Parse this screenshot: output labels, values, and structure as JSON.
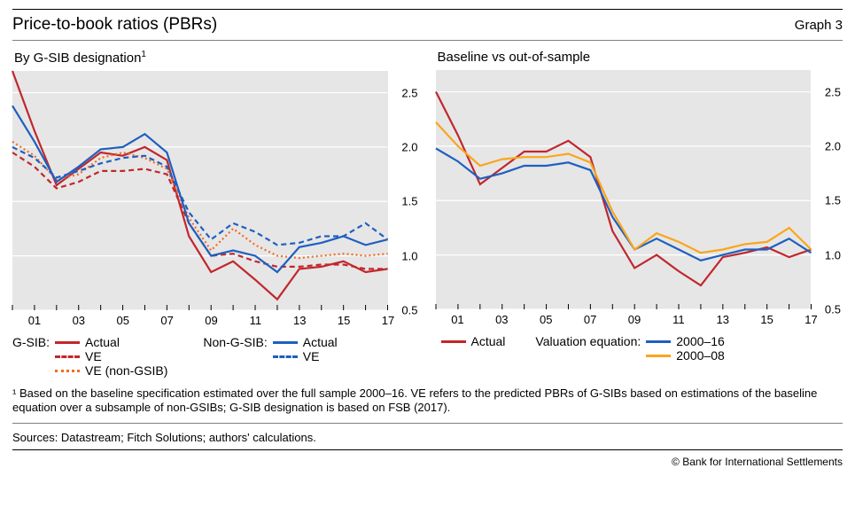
{
  "title": "Price-to-book ratios (PBRs)",
  "graph_label": "Graph 3",
  "footnote": "¹  Based on the baseline specification estimated over the full sample 2000–16. VE refers to the predicted PBRs of G-SIBs based on estimations of the baseline equation over a subsample of non-GSIBs; G-SIB designation is based on FSB (2017).",
  "sources": "Sources: Datastream; Fitch Solutions; authors' calculations.",
  "copyright": "© Bank for International Settlements",
  "panels": {
    "left": {
      "title_html": "By G-SIB designation¹",
      "legend_groups": [
        {
          "label": "G-SIB:",
          "items": [
            {
              "label": "Actual",
              "color": "#c1272d",
              "style": "solid"
            },
            {
              "label": "VE",
              "color": "#c1272d",
              "style": "dashed"
            },
            {
              "label": "VE (non-GSIB)",
              "color": "#f26c21",
              "style": "dotted"
            }
          ]
        },
        {
          "label": "Non-G-SIB:",
          "items": [
            {
              "label": "Actual",
              "color": "#1f5fbf",
              "style": "solid"
            },
            {
              "label": "VE",
              "color": "#1f5fbf",
              "style": "dashed"
            }
          ]
        }
      ]
    },
    "right": {
      "title": "Baseline vs out-of-sample",
      "legend_groups": [
        {
          "label": "",
          "items": [
            {
              "label": "Actual",
              "color": "#c1272d",
              "style": "solid"
            }
          ]
        },
        {
          "label": "Valuation equation:",
          "items": [
            {
              "label": "2000–16",
              "color": "#1f5fbf",
              "style": "solid"
            },
            {
              "label": "2000–08",
              "color": "#f9a61a",
              "style": "solid"
            }
          ]
        }
      ]
    }
  },
  "axes": {
    "ylim": [
      0.5,
      2.7
    ],
    "yticks": [
      0.5,
      1.0,
      1.5,
      2.0,
      2.5
    ],
    "xlim": [
      2000,
      2017
    ],
    "xticks_labeled": [
      2001,
      2003,
      2005,
      2007,
      2009,
      2011,
      2013,
      2015,
      2017
    ],
    "xtick_labels": [
      "01",
      "03",
      "05",
      "07",
      "09",
      "11",
      "13",
      "15",
      "17"
    ],
    "xticks_all": [
      2000,
      2001,
      2002,
      2003,
      2004,
      2005,
      2006,
      2007,
      2008,
      2009,
      2010,
      2011,
      2012,
      2013,
      2014,
      2015,
      2016,
      2017
    ],
    "background": "#e6e6e6",
    "grid_color": "#ffffff",
    "axis_fontsize": 13
  },
  "series": {
    "left": [
      {
        "name": "gsib-actual",
        "color": "#c1272d",
        "style": "solid",
        "data": [
          [
            2000,
            2.7
          ],
          [
            2001,
            2.15
          ],
          [
            2002,
            1.65
          ],
          [
            2003,
            1.8
          ],
          [
            2004,
            1.95
          ],
          [
            2005,
            1.92
          ],
          [
            2006,
            2.0
          ],
          [
            2007,
            1.88
          ],
          [
            2008,
            1.18
          ],
          [
            2009,
            0.85
          ],
          [
            2010,
            0.95
          ],
          [
            2011,
            0.78
          ],
          [
            2012,
            0.6
          ],
          [
            2013,
            0.88
          ],
          [
            2014,
            0.9
          ],
          [
            2015,
            0.95
          ],
          [
            2016,
            0.85
          ],
          [
            2017,
            0.88
          ]
        ]
      },
      {
        "name": "gsib-ve",
        "color": "#c1272d",
        "style": "dashed",
        "data": [
          [
            2000,
            1.95
          ],
          [
            2001,
            1.82
          ],
          [
            2002,
            1.62
          ],
          [
            2003,
            1.68
          ],
          [
            2004,
            1.78
          ],
          [
            2005,
            1.78
          ],
          [
            2006,
            1.8
          ],
          [
            2007,
            1.75
          ],
          [
            2008,
            1.3
          ],
          [
            2009,
            1.0
          ],
          [
            2010,
            1.02
          ],
          [
            2011,
            0.95
          ],
          [
            2012,
            0.9
          ],
          [
            2013,
            0.9
          ],
          [
            2014,
            0.92
          ],
          [
            2015,
            0.92
          ],
          [
            2016,
            0.88
          ],
          [
            2017,
            0.88
          ]
        ]
      },
      {
        "name": "gsib-ve-nongsib",
        "color": "#f26c21",
        "style": "dotted",
        "data": [
          [
            2000,
            2.05
          ],
          [
            2001,
            1.92
          ],
          [
            2002,
            1.7
          ],
          [
            2003,
            1.75
          ],
          [
            2004,
            1.9
          ],
          [
            2005,
            1.95
          ],
          [
            2006,
            1.9
          ],
          [
            2007,
            1.8
          ],
          [
            2008,
            1.35
          ],
          [
            2009,
            1.05
          ],
          [
            2010,
            1.25
          ],
          [
            2011,
            1.1
          ],
          [
            2012,
            1.0
          ],
          [
            2013,
            0.98
          ],
          [
            2014,
            1.0
          ],
          [
            2015,
            1.02
          ],
          [
            2016,
            1.0
          ],
          [
            2017,
            1.02
          ]
        ]
      },
      {
        "name": "nongsib-actual",
        "color": "#1f5fbf",
        "style": "solid",
        "data": [
          [
            2000,
            2.38
          ],
          [
            2001,
            2.05
          ],
          [
            2002,
            1.68
          ],
          [
            2003,
            1.82
          ],
          [
            2004,
            1.98
          ],
          [
            2005,
            2.0
          ],
          [
            2006,
            2.12
          ],
          [
            2007,
            1.95
          ],
          [
            2008,
            1.3
          ],
          [
            2009,
            1.0
          ],
          [
            2010,
            1.05
          ],
          [
            2011,
            1.0
          ],
          [
            2012,
            0.85
          ],
          [
            2013,
            1.08
          ],
          [
            2014,
            1.12
          ],
          [
            2015,
            1.18
          ],
          [
            2016,
            1.1
          ],
          [
            2017,
            1.15
          ]
        ]
      },
      {
        "name": "nongsib-ve",
        "color": "#1f5fbf",
        "style": "dashed",
        "data": [
          [
            2000,
            2.0
          ],
          [
            2001,
            1.9
          ],
          [
            2002,
            1.72
          ],
          [
            2003,
            1.78
          ],
          [
            2004,
            1.85
          ],
          [
            2005,
            1.9
          ],
          [
            2006,
            1.92
          ],
          [
            2007,
            1.82
          ],
          [
            2008,
            1.4
          ],
          [
            2009,
            1.15
          ],
          [
            2010,
            1.3
          ],
          [
            2011,
            1.22
          ],
          [
            2012,
            1.1
          ],
          [
            2013,
            1.12
          ],
          [
            2014,
            1.18
          ],
          [
            2015,
            1.18
          ],
          [
            2016,
            1.3
          ],
          [
            2017,
            1.15
          ]
        ]
      }
    ],
    "right": [
      {
        "name": "actual",
        "color": "#c1272d",
        "style": "solid",
        "data": [
          [
            2000,
            2.5
          ],
          [
            2001,
            2.1
          ],
          [
            2002,
            1.65
          ],
          [
            2003,
            1.8
          ],
          [
            2004,
            1.95
          ],
          [
            2005,
            1.95
          ],
          [
            2006,
            2.05
          ],
          [
            2007,
            1.9
          ],
          [
            2008,
            1.22
          ],
          [
            2009,
            0.88
          ],
          [
            2010,
            1.0
          ],
          [
            2011,
            0.85
          ],
          [
            2012,
            0.72
          ],
          [
            2013,
            0.98
          ],
          [
            2014,
            1.02
          ],
          [
            2015,
            1.07
          ],
          [
            2016,
            0.98
          ],
          [
            2017,
            1.05
          ]
        ]
      },
      {
        "name": "ve-2000-16",
        "color": "#1f5fbf",
        "style": "solid",
        "data": [
          [
            2000,
            1.98
          ],
          [
            2001,
            1.86
          ],
          [
            2002,
            1.7
          ],
          [
            2003,
            1.75
          ],
          [
            2004,
            1.82
          ],
          [
            2005,
            1.82
          ],
          [
            2006,
            1.85
          ],
          [
            2007,
            1.78
          ],
          [
            2008,
            1.35
          ],
          [
            2009,
            1.05
          ],
          [
            2010,
            1.15
          ],
          [
            2011,
            1.05
          ],
          [
            2012,
            0.95
          ],
          [
            2013,
            1.0
          ],
          [
            2014,
            1.05
          ],
          [
            2015,
            1.05
          ],
          [
            2016,
            1.15
          ],
          [
            2017,
            1.02
          ]
        ]
      },
      {
        "name": "ve-2000-08",
        "color": "#f9a61a",
        "style": "solid",
        "data": [
          [
            2000,
            2.22
          ],
          [
            2001,
            2.0
          ],
          [
            2002,
            1.82
          ],
          [
            2003,
            1.88
          ],
          [
            2004,
            1.9
          ],
          [
            2005,
            1.9
          ],
          [
            2006,
            1.93
          ],
          [
            2007,
            1.85
          ],
          [
            2008,
            1.4
          ],
          [
            2009,
            1.05
          ],
          [
            2010,
            1.2
          ],
          [
            2011,
            1.12
          ],
          [
            2012,
            1.02
          ],
          [
            2013,
            1.05
          ],
          [
            2014,
            1.1
          ],
          [
            2015,
            1.12
          ],
          [
            2016,
            1.25
          ],
          [
            2017,
            1.05
          ]
        ]
      }
    ]
  }
}
